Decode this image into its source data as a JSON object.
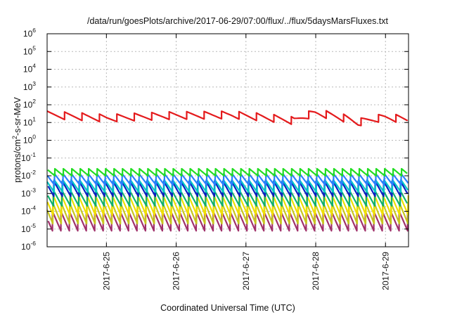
{
  "chart_data": {
    "type": "line",
    "title": "/data/run/goesPlots/archive/2017-06-29/07:00/flux/../flux/5daysMarsFluxes.txt",
    "xlabel": "Coordinated Universal Time (UTC)",
    "ylabel": "protons/cm2-s-sr-MeV",
    "ylabel_parts": {
      "pre": "protons/cm",
      "sup": "2",
      "post": "-s-sr-MeV"
    },
    "x_unit": "day of month (June 2017)",
    "xlim": [
      24.15,
      29.33
    ],
    "x_ticks": [
      {
        "value": 25,
        "label": "2017-6-25"
      },
      {
        "value": 26,
        "label": "2017-6-26"
      },
      {
        "value": 27,
        "label": "2017-6-27"
      },
      {
        "value": 28,
        "label": "2017-6-28"
      },
      {
        "value": 29,
        "label": "2017-6-29"
      }
    ],
    "y_scale": "log",
    "ylim": [
      1e-06,
      1000000.0
    ],
    "y_ticks": [
      {
        "value": 1e-06,
        "base": "10",
        "exp": "-6"
      },
      {
        "value": 1e-05,
        "base": "10",
        "exp": "-5"
      },
      {
        "value": 0.0001,
        "base": "10",
        "exp": "-4"
      },
      {
        "value": 0.001,
        "base": "10",
        "exp": "-3"
      },
      {
        "value": 0.01,
        "base": "10",
        "exp": "-2"
      },
      {
        "value": 0.1,
        "base": "10",
        "exp": "-1"
      },
      {
        "value": 1.0,
        "base": "10",
        "exp": "0"
      },
      {
        "value": 10.0,
        "base": "10",
        "exp": "1"
      },
      {
        "value": 100.0,
        "base": "10",
        "exp": "2"
      },
      {
        "value": 1000.0,
        "base": "10",
        "exp": "3"
      },
      {
        "value": 10000.0,
        "base": "10",
        "exp": "4"
      },
      {
        "value": 100000.0,
        "base": "10",
        "exp": "5"
      },
      {
        "value": 1000000.0,
        "base": "10",
        "exp": "6"
      }
    ],
    "grid": true,
    "legend": false,
    "series": [
      {
        "color": "#e41a1c",
        "period": 0.25,
        "phase": 0.0,
        "high": 40,
        "low": 15,
        "envelope": [
          [
            24.15,
            1.1
          ],
          [
            25.0,
            0.7
          ],
          [
            25.9,
            1.0
          ],
          [
            26.8,
            1.1
          ],
          [
            27.7,
            0.5
          ],
          [
            28.0,
            1.4
          ],
          [
            28.6,
            0.4
          ],
          [
            29.0,
            0.8
          ],
          [
            29.33,
            0.6
          ]
        ]
      },
      {
        "color": "#22dd22",
        "period": 0.1212,
        "phase": 0.01,
        "high": 0.025,
        "low": 0.01
      },
      {
        "color": "#2a7fff",
        "period": 0.1212,
        "phase": 0.015,
        "high": 0.013,
        "low": 0.003
      },
      {
        "color": "#00c8c8",
        "period": 0.1212,
        "phase": 0.02,
        "high": 0.006,
        "low": 0.0012
      },
      {
        "color": "#0a20c0",
        "period": 0.1212,
        "phase": 0.025,
        "high": 0.005,
        "low": 0.0007
      },
      {
        "color": "#10b070",
        "period": 0.1212,
        "phase": 0.03,
        "high": 0.0015,
        "low": 0.0002
      },
      {
        "color": "#f0e000",
        "period": 0.1212,
        "phase": 0.035,
        "high": 0.0008,
        "low": 6e-05
      },
      {
        "color": "#c8c820",
        "period": 0.1212,
        "phase": 0.04,
        "high": 0.0003,
        "low": 2e-05
      },
      {
        "color": "#a0306a",
        "period": 0.1212,
        "phase": 0.045,
        "high": 0.0001,
        "low": 8e-06
      }
    ]
  }
}
